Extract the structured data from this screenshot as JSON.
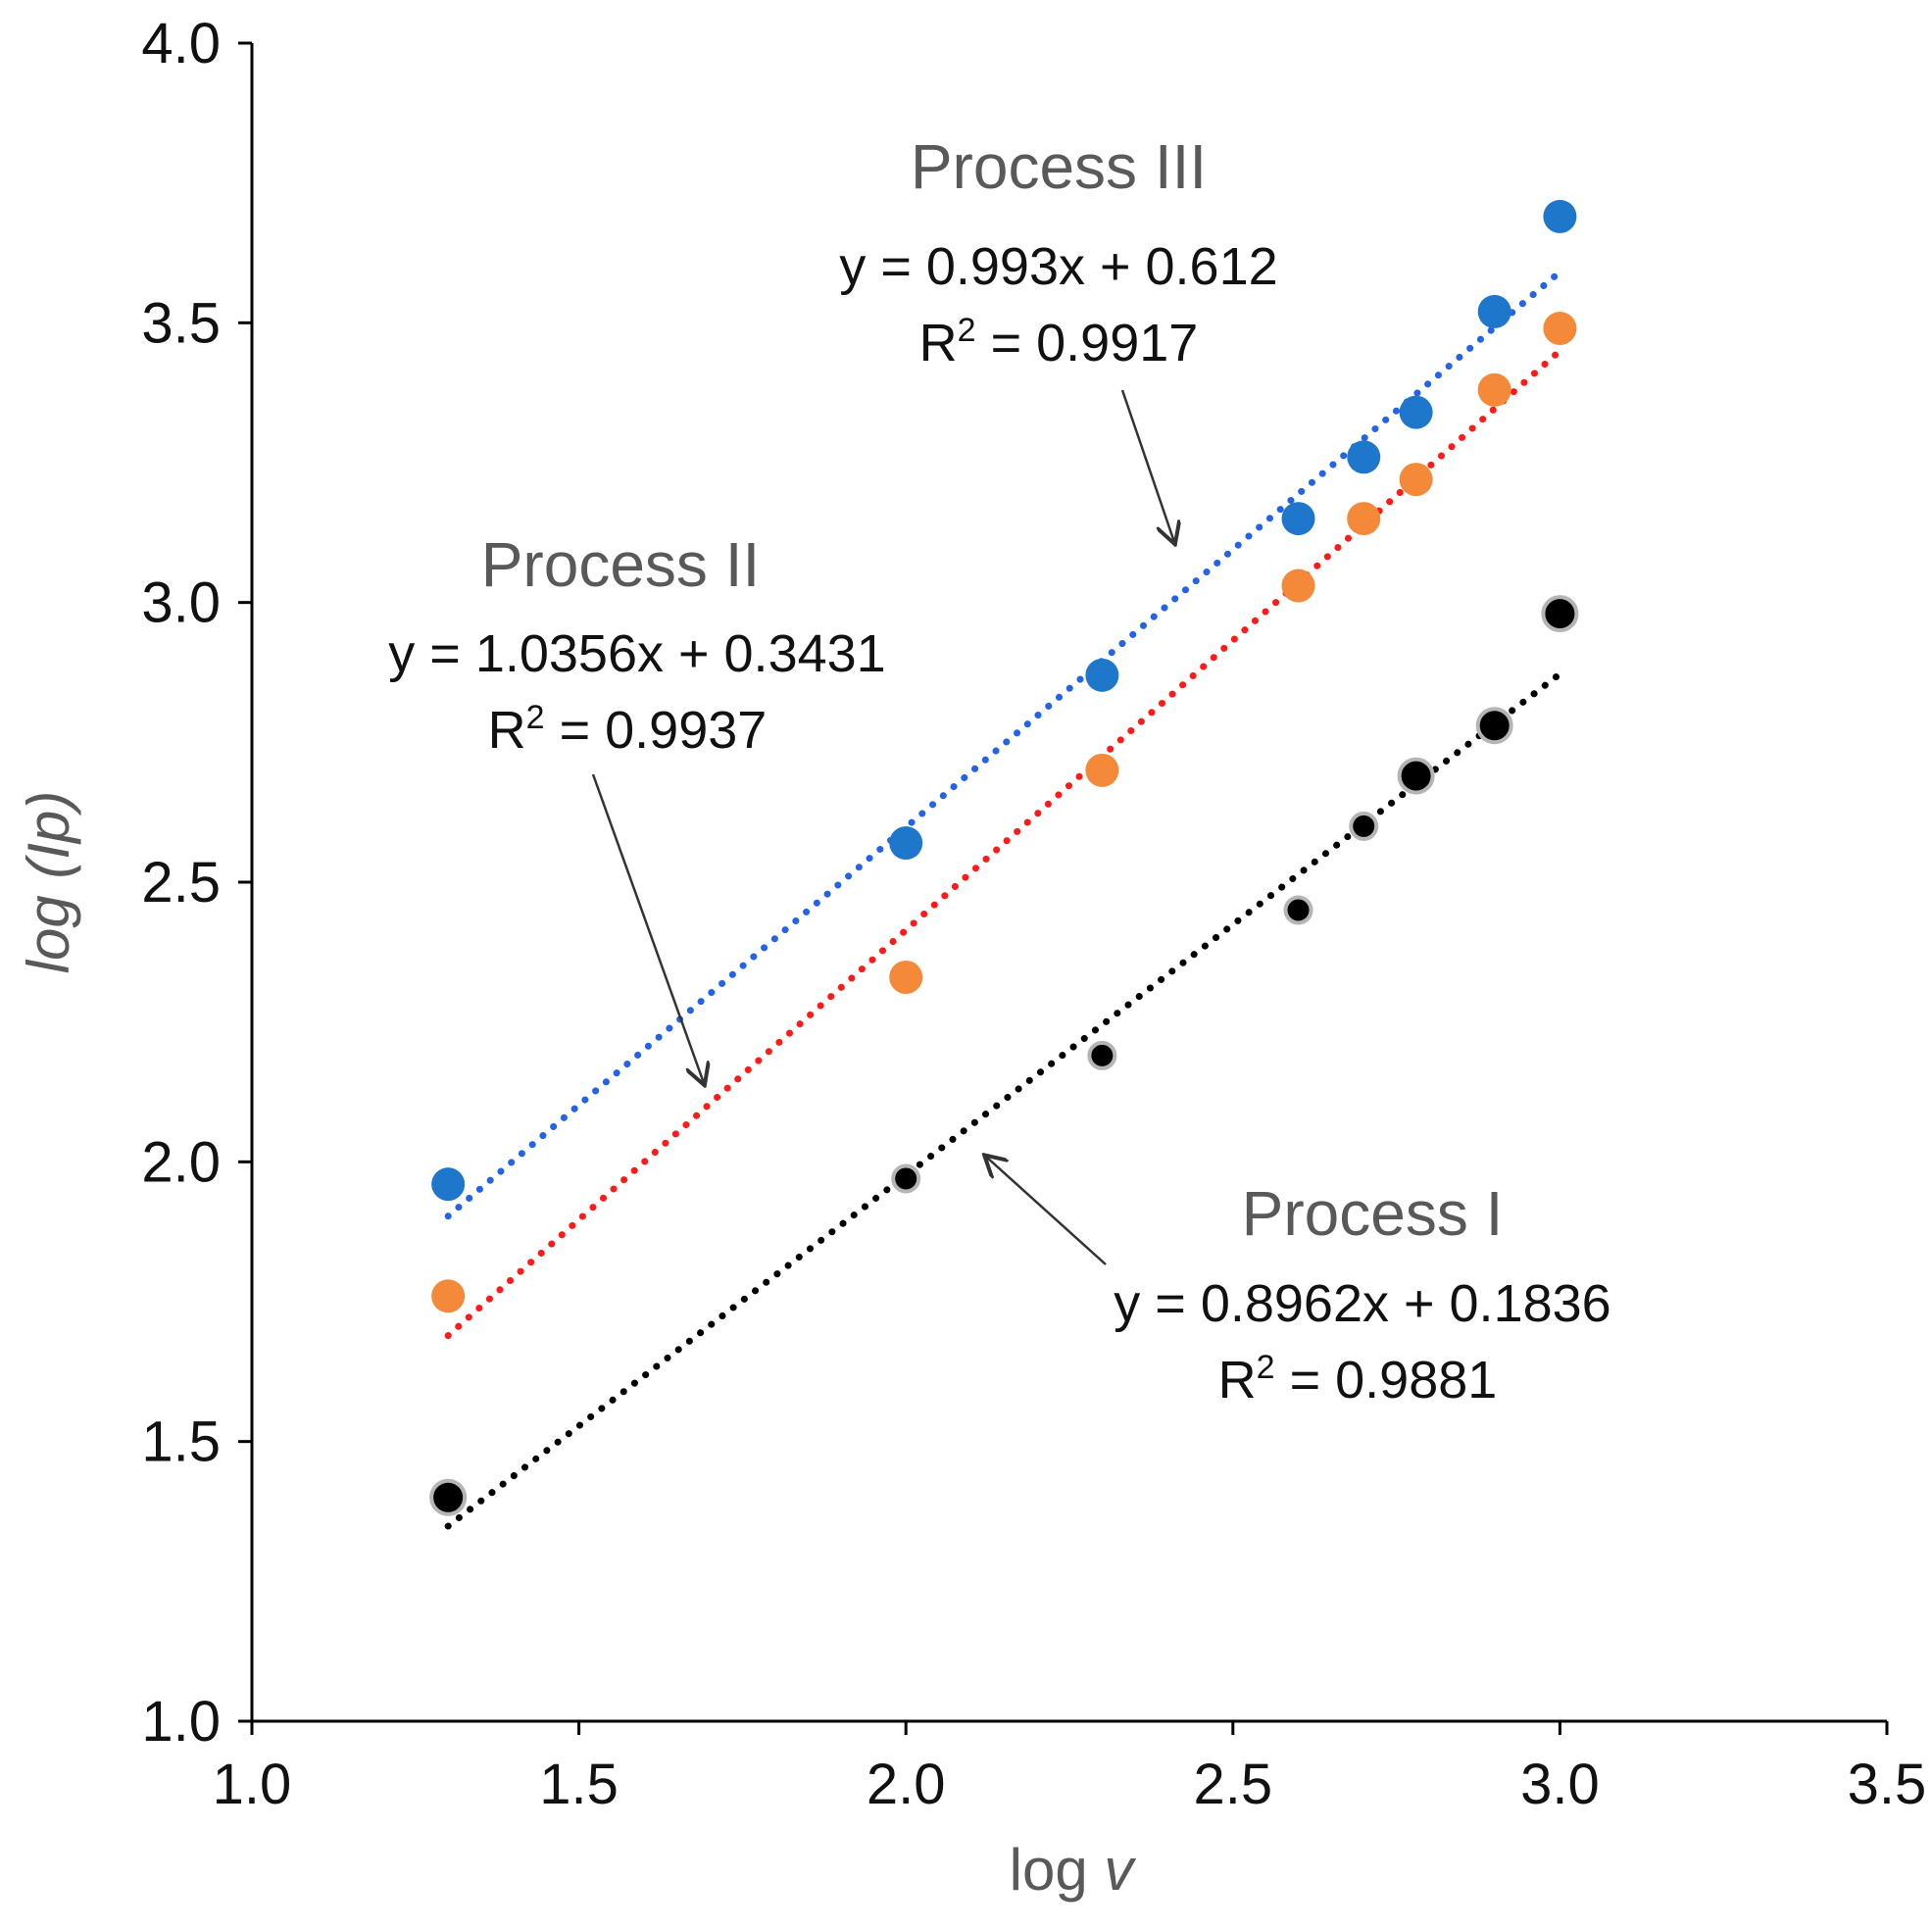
{
  "chart_data": {
    "type": "scatter",
    "title": "",
    "xlabel": {
      "prefix": "log ",
      "var": "v"
    },
    "ylabel": "log (Ip)",
    "xlim": [
      1.0,
      3.5
    ],
    "ylim": [
      1.0,
      4.0
    ],
    "xticks": [
      "1.0",
      "1.5",
      "2.0",
      "2.5",
      "3.0",
      "3.5"
    ],
    "yticks": [
      "1.0",
      "1.5",
      "2.0",
      "2.5",
      "3.0",
      "3.5",
      "4.0"
    ],
    "grid": false,
    "legend": "none",
    "series": [
      {
        "name": "Process I",
        "color": "#000000",
        "x": [
          1.3,
          2.0,
          2.3,
          2.6,
          2.7,
          2.78,
          2.9,
          3.0
        ],
        "y": [
          1.4,
          1.97,
          2.19,
          2.45,
          2.6,
          2.69,
          2.78,
          2.98
        ],
        "trendline": {
          "slope": 0.8962,
          "intercept": 0.1836,
          "x_range": [
            1.3,
            3.0
          ],
          "color": "#000000"
        },
        "equation": "y = 0.8962x + 0.1836",
        "r2_value": " = 0.9881"
      },
      {
        "name": "Process II",
        "color": "#F5893A",
        "x": [
          1.3,
          2.0,
          2.3,
          2.6,
          2.7,
          2.78,
          2.9,
          3.0
        ],
        "y": [
          1.76,
          2.33,
          2.7,
          3.03,
          3.15,
          3.22,
          3.38,
          3.49
        ],
        "trendline": {
          "slope": 1.0356,
          "intercept": 0.3431,
          "x_range": [
            1.3,
            3.0
          ],
          "color": "#FF1A1A"
        },
        "equation": "y = 1.0356x + 0.3431",
        "r2_value": " = 0.9937"
      },
      {
        "name": "Process III",
        "color": "#1F77CC",
        "x": [
          1.3,
          2.0,
          2.3,
          2.6,
          2.7,
          2.78,
          2.9,
          3.0
        ],
        "y": [
          1.96,
          2.57,
          2.87,
          3.15,
          3.26,
          3.34,
          3.52,
          3.69
        ],
        "trendline": {
          "slope": 0.993,
          "intercept": 0.612,
          "x_range": [
            1.3,
            3.0
          ],
          "color": "#2563E6"
        },
        "equation": "y = 0.993x + 0.612",
        "r2_value": " = 0.9917"
      }
    ],
    "annotations": {
      "r2_symbol": "R",
      "r2_superscript": "2"
    }
  }
}
